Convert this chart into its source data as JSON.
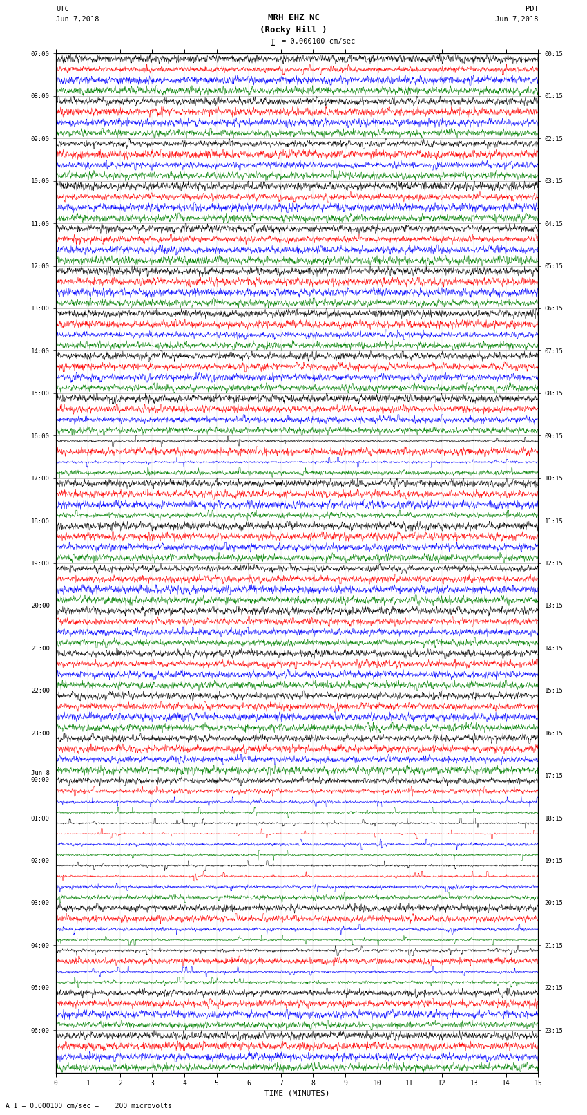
{
  "title_line1": "MRH EHZ NC",
  "title_line2": "(Rocky Hill )",
  "title_scale": "I = 0.000100 cm/sec",
  "left_header_line1": "UTC",
  "left_header_line2": "Jun 7,2018",
  "right_header_line1": "PDT",
  "right_header_line2": "Jun 7,2018",
  "bottom_label": "TIME (MINUTES)",
  "bottom_note": "A I = 0.000100 cm/sec =    200 microvolts",
  "utc_labels": [
    "07:00",
    "08:00",
    "09:00",
    "10:00",
    "11:00",
    "12:00",
    "13:00",
    "14:00",
    "15:00",
    "16:00",
    "17:00",
    "18:00",
    "19:00",
    "20:00",
    "21:00",
    "22:00",
    "23:00",
    "Jun 8\n00:00",
    "01:00",
    "02:00",
    "03:00",
    "04:00",
    "05:00",
    "06:00"
  ],
  "pdt_labels": [
    "00:15",
    "01:15",
    "02:15",
    "03:15",
    "04:15",
    "05:15",
    "06:15",
    "07:15",
    "08:15",
    "09:15",
    "10:15",
    "11:15",
    "12:15",
    "13:15",
    "14:15",
    "15:15",
    "16:15",
    "17:15",
    "18:15",
    "19:15",
    "20:15",
    "21:15",
    "22:15",
    "23:15"
  ],
  "trace_colors": [
    "black",
    "red",
    "blue",
    "green"
  ],
  "n_groups": 24,
  "n_cols": 1800,
  "x_min": 0,
  "x_max": 15,
  "bg_color": "white",
  "trace_amplitude": 0.35,
  "spike_amplitude": 2.5,
  "ar_coef": 0.3,
  "seed": 42
}
